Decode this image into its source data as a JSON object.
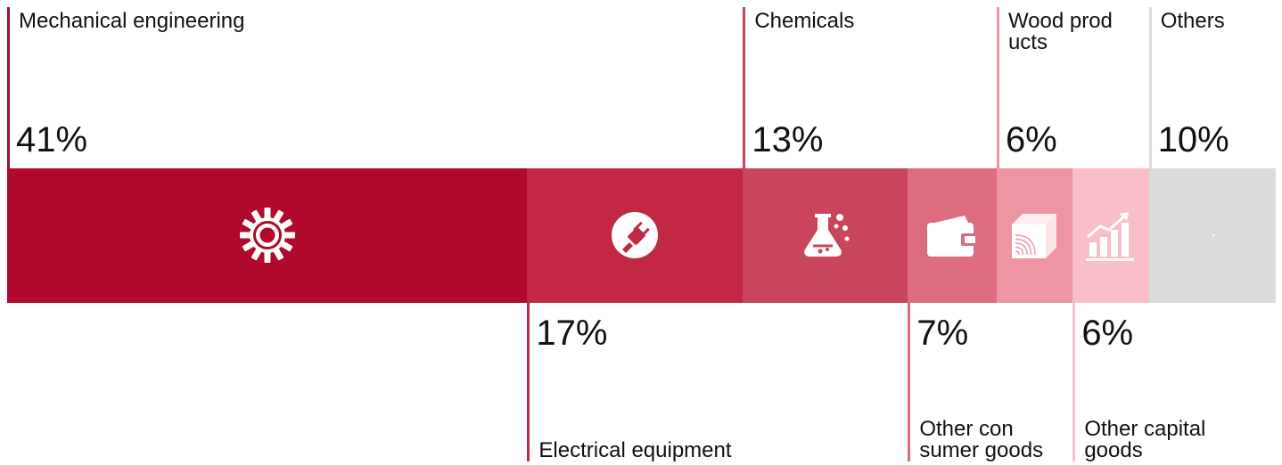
{
  "chart_data": {
    "type": "bar",
    "subtype": "stacked-100-percent-horizontal",
    "categories": [
      "Mechanical engineering",
      "Electrical equipment",
      "Chemicals",
      "Other con sumer goods",
      "Wood prod ucts",
      "Other capital goods",
      "Others"
    ],
    "values": [
      41,
      17,
      13,
      7,
      6,
      6,
      10
    ],
    "value_labels": [
      "41%",
      "17%",
      "13%",
      "7%",
      "6%",
      "6%",
      "10%"
    ],
    "label_positions": [
      "top",
      "bottom",
      "top",
      "bottom",
      "top",
      "bottom",
      "top"
    ],
    "icons": [
      "gear-icon",
      "plug-icon",
      "flask-icon",
      "wallet-icon",
      "wood-block-icon",
      "growth-chart-icon",
      "none"
    ],
    "colors": [
      "#b0092b",
      "#c22844",
      "#c9455c",
      "#dc6c7e",
      "#ee95a4",
      "#f8bfc9",
      "#dcdcdc"
    ],
    "label_colors": [
      "#b0092b",
      "#c22844",
      "#c9455c",
      "#dc6c7e",
      "#ee95a4",
      "#f8bfc9",
      "#dcdcdc"
    ],
    "total": 100
  }
}
